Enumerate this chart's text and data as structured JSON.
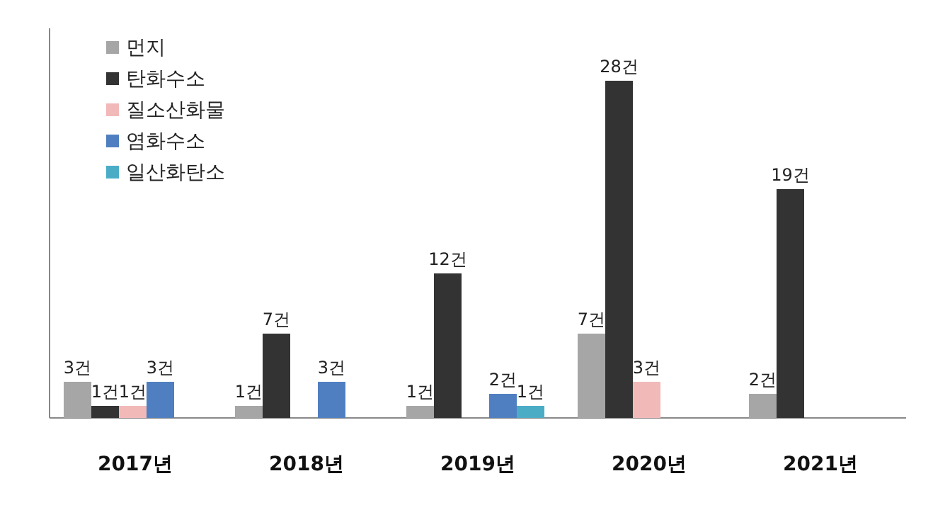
{
  "chart_data": {
    "type": "bar",
    "categories": [
      "2017년",
      "2018년",
      "2019년",
      "2020년",
      "2021년"
    ],
    "legend": "top left",
    "series": [
      {
        "name": "먼지",
        "color": "#a6a6a6",
        "values": [
          3,
          1,
          1,
          7,
          2
        ],
        "value_labels": [
          "3건",
          "1건",
          "1건",
          "7건",
          "2건"
        ]
      },
      {
        "name": "탄화수소",
        "color": "#333333",
        "values": [
          1,
          7,
          12,
          28,
          19
        ],
        "value_labels": [
          "1건",
          "7건",
          "12건",
          "28건",
          "19건"
        ]
      },
      {
        "name": "질소산화물",
        "color": "#f2b9b9",
        "values": [
          1,
          null,
          null,
          3,
          null
        ],
        "value_labels": [
          "1건",
          null,
          null,
          "3건",
          null
        ]
      },
      {
        "name": "염화수소",
        "color": "#4f7fc0",
        "values": [
          3,
          3,
          2,
          null,
          null
        ],
        "value_labels": [
          "3건",
          "3건",
          "2건",
          null,
          null
        ]
      },
      {
        "name": "일산화탄소",
        "color": "#4bacc6",
        "values": [
          null,
          null,
          1,
          null,
          null
        ],
        "value_labels": [
          null,
          null,
          "1건",
          null,
          null
        ]
      }
    ]
  }
}
